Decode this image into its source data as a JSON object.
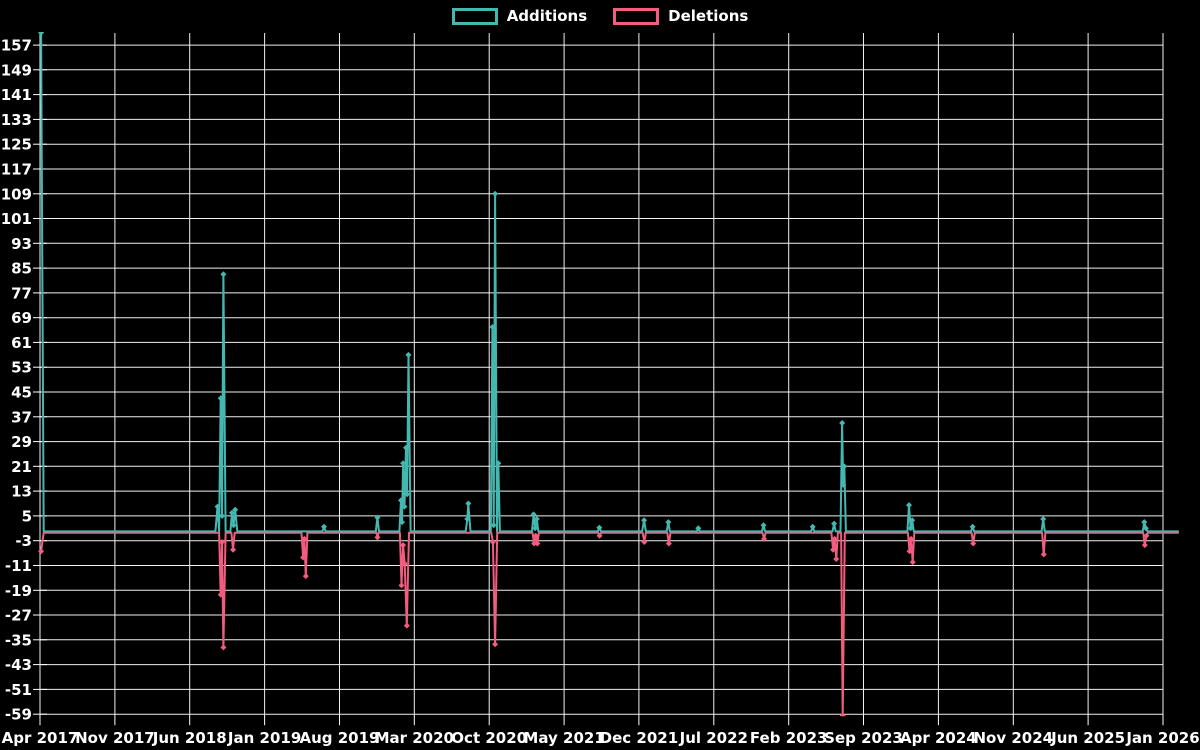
{
  "legend": {
    "items": [
      {
        "label": "Additions",
        "color": "#44b8b0"
      },
      {
        "label": "Deletions",
        "color": "#f25c7f"
      }
    ]
  },
  "colors": {
    "background": "#000000",
    "grid": "#f0f0f0",
    "text": "#ffffff",
    "additions": "#44b8b0",
    "deletions": "#f25c7f"
  },
  "chart_data": {
    "type": "line",
    "title": "",
    "grid": true,
    "legend_position": "top-center",
    "x_axis": {
      "unit": "months since Apr 2017",
      "tick_interval_months": 7,
      "total_months": 105,
      "tick_labels": [
        "Apr 2017",
        "Nov 2017",
        "Jun 2018",
        "Jan 2019",
        "Aug 2019",
        "Mar 2020",
        "Oct 2020",
        "May 2021",
        "Dec 2021",
        "Jul 2022",
        "Feb 2023",
        "Sep 2023",
        "Apr 2024",
        "Nov 2024",
        "Jun 2025",
        "Jan 2026"
      ]
    },
    "y_axis": {
      "min": -59,
      "max": 157,
      "tick_step": 8,
      "tick_labels": [
        157,
        149,
        141,
        133,
        125,
        117,
        109,
        101,
        93,
        85,
        77,
        69,
        61,
        53,
        45,
        37,
        29,
        21,
        13,
        5,
        -3,
        -11,
        -19,
        -27,
        -35,
        -43,
        -51,
        -59
      ]
    },
    "series": [
      {
        "name": "Additions",
        "color": "#44b8b0",
        "points": [
          [
            0.1,
            161
          ],
          [
            0.35,
            0
          ],
          [
            16.4,
            0
          ],
          [
            16.6,
            8
          ],
          [
            16.75,
            0
          ],
          [
            16.9,
            43
          ],
          [
            17.02,
            5
          ],
          [
            17.15,
            83
          ],
          [
            17.35,
            0
          ],
          [
            17.8,
            0
          ],
          [
            17.95,
            6
          ],
          [
            18.1,
            2
          ],
          [
            18.25,
            7
          ],
          [
            18.45,
            0
          ],
          [
            26.4,
            0
          ],
          [
            26.55,
            1.5
          ],
          [
            26.7,
            0
          ],
          [
            31.4,
            0
          ],
          [
            31.55,
            4.5
          ],
          [
            31.7,
            0
          ],
          [
            33.6,
            0
          ],
          [
            33.75,
            10
          ],
          [
            33.85,
            3
          ],
          [
            33.95,
            22
          ],
          [
            34.08,
            8
          ],
          [
            34.22,
            27
          ],
          [
            34.32,
            12
          ],
          [
            34.45,
            57
          ],
          [
            34.65,
            0
          ],
          [
            39.8,
            0
          ],
          [
            39.95,
            4
          ],
          [
            40.05,
            9
          ],
          [
            40.25,
            0
          ],
          [
            42.15,
            0
          ],
          [
            42.3,
            66
          ],
          [
            42.42,
            2
          ],
          [
            42.55,
            109
          ],
          [
            42.73,
            0
          ],
          [
            42.85,
            22
          ],
          [
            43.0,
            0
          ],
          [
            46.0,
            0
          ],
          [
            46.15,
            5.5
          ],
          [
            46.3,
            1
          ],
          [
            46.45,
            4
          ],
          [
            46.6,
            0
          ],
          [
            52.15,
            0
          ],
          [
            52.3,
            1.2
          ],
          [
            52.45,
            0
          ],
          [
            56.3,
            0
          ],
          [
            56.48,
            3.6
          ],
          [
            56.65,
            0
          ],
          [
            58.6,
            0
          ],
          [
            58.75,
            3
          ],
          [
            58.9,
            0
          ],
          [
            61.4,
            0
          ],
          [
            61.55,
            1
          ],
          [
            61.7,
            0
          ],
          [
            67.5,
            0
          ],
          [
            67.65,
            2
          ],
          [
            67.8,
            0
          ],
          [
            72.1,
            0
          ],
          [
            72.25,
            1.5
          ],
          [
            72.4,
            0
          ],
          [
            74.1,
            0
          ],
          [
            74.25,
            2.5
          ],
          [
            74.4,
            0
          ],
          [
            74.85,
            0
          ],
          [
            75.0,
            35
          ],
          [
            75.1,
            15
          ],
          [
            75.2,
            21
          ],
          [
            75.35,
            0
          ],
          [
            81.1,
            0
          ],
          [
            81.25,
            8.5
          ],
          [
            81.4,
            1
          ],
          [
            81.55,
            3.6
          ],
          [
            81.7,
            0
          ],
          [
            87.05,
            0
          ],
          [
            87.2,
            1.5
          ],
          [
            87.35,
            0
          ],
          [
            93.65,
            0
          ],
          [
            93.8,
            4
          ],
          [
            93.95,
            0
          ],
          [
            103.1,
            0
          ],
          [
            103.25,
            3
          ],
          [
            103.4,
            1
          ],
          [
            103.55,
            0
          ],
          [
            106.4,
            0
          ]
        ]
      },
      {
        "name": "Deletions",
        "color": "#f25c7f",
        "points": [
          [
            0.1,
            -6
          ],
          [
            0.35,
            0
          ],
          [
            16.75,
            0
          ],
          [
            16.9,
            -20
          ],
          [
            17.02,
            -3
          ],
          [
            17.15,
            -37
          ],
          [
            17.35,
            0
          ],
          [
            17.9,
            0
          ],
          [
            18.05,
            -5.5
          ],
          [
            18.2,
            0
          ],
          [
            24.45,
            0
          ],
          [
            24.6,
            -8
          ],
          [
            24.72,
            -2
          ],
          [
            24.85,
            -14
          ],
          [
            25.0,
            0
          ],
          [
            31.45,
            0
          ],
          [
            31.55,
            -1.5
          ],
          [
            31.65,
            0
          ],
          [
            33.65,
            0
          ],
          [
            33.8,
            -17
          ],
          [
            33.95,
            -4
          ],
          [
            34.1,
            -10
          ],
          [
            34.3,
            -30
          ],
          [
            34.5,
            0
          ],
          [
            42.2,
            0
          ],
          [
            42.35,
            -3
          ],
          [
            42.55,
            -36
          ],
          [
            42.75,
            0
          ],
          [
            46.05,
            0
          ],
          [
            46.2,
            -3.5
          ],
          [
            46.35,
            -1
          ],
          [
            46.5,
            -3.5
          ],
          [
            46.65,
            0
          ],
          [
            52.2,
            0
          ],
          [
            52.32,
            -1
          ],
          [
            52.45,
            0
          ],
          [
            56.35,
            0
          ],
          [
            56.5,
            -3
          ],
          [
            56.65,
            0
          ],
          [
            58.65,
            0
          ],
          [
            58.8,
            -3.5
          ],
          [
            58.95,
            0
          ],
          [
            67.55,
            0
          ],
          [
            67.7,
            -2
          ],
          [
            67.85,
            0
          ],
          [
            74.0,
            0
          ],
          [
            74.15,
            -5.5
          ],
          [
            74.3,
            -2
          ],
          [
            74.45,
            -8.5
          ],
          [
            74.6,
            0
          ],
          [
            74.9,
            0
          ],
          [
            75.05,
            -59
          ],
          [
            75.25,
            0
          ],
          [
            81.15,
            0
          ],
          [
            81.3,
            -6
          ],
          [
            81.45,
            -2
          ],
          [
            81.6,
            -9.5
          ],
          [
            81.75,
            0
          ],
          [
            87.1,
            0
          ],
          [
            87.25,
            -3.5
          ],
          [
            87.4,
            0
          ],
          [
            93.7,
            0
          ],
          [
            93.85,
            -7
          ],
          [
            94.0,
            0
          ],
          [
            103.15,
            0
          ],
          [
            103.3,
            -4
          ],
          [
            103.45,
            -1
          ],
          [
            103.6,
            0
          ],
          [
            106.4,
            0
          ]
        ]
      }
    ]
  }
}
